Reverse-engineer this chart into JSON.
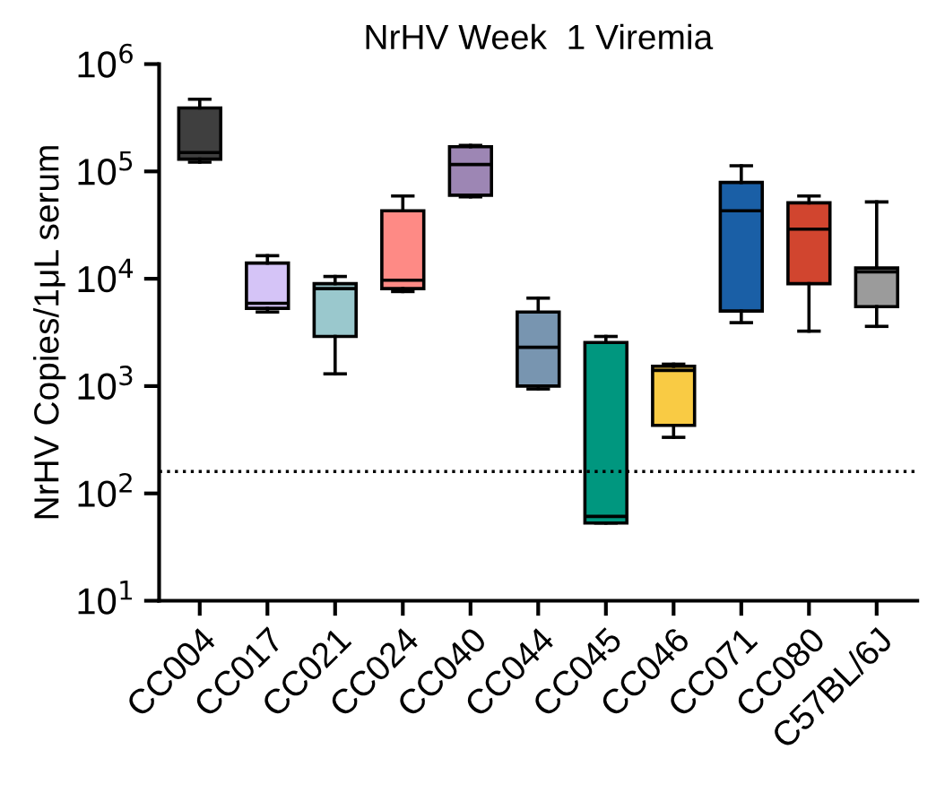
{
  "chart_data": {
    "type": "box",
    "title": "NrHV Week  1 Viremia",
    "ylabel": "NrHV Copies/1μL serum",
    "categories": [
      "CC004",
      "CC017",
      "CC021",
      "CC024",
      "CC040",
      "CC044",
      "CC045",
      "CC046",
      "CC071",
      "CC080",
      "C57BL/6J"
    ],
    "colors": [
      "#3f3f3f",
      "#d5c4f7",
      "#9ac8cd",
      "#fe8a85",
      "#9d86b4",
      "#7895b0",
      "#00977f",
      "#f9cb44",
      "#1a5fa6",
      "#d1452f",
      "#9b9b9b"
    ],
    "boxes": [
      {
        "low": 122000,
        "q1": 130000,
        "median": 150000,
        "q3": 390000,
        "high": 470000
      },
      {
        "low": 4900,
        "q1": 5300,
        "median": 5900,
        "q3": 14000,
        "high": 16400
      },
      {
        "low": 1300,
        "q1": 2900,
        "median": 8100,
        "q3": 9000,
        "high": 10500
      },
      {
        "low": 7600,
        "q1": 8100,
        "median": 9700,
        "q3": 43000,
        "high": 59000
      },
      {
        "low": 58000,
        "q1": 60000,
        "median": 116000,
        "q3": 170000,
        "high": 175000
      },
      {
        "low": 940,
        "q1": 1000,
        "median": 2300,
        "q3": 4900,
        "high": 6600
      },
      {
        "low": 53,
        "q1": 53,
        "median": 61,
        "q3": 2550,
        "high": 2900
      },
      {
        "low": 333,
        "q1": 430,
        "median": 1400,
        "q3": 1530,
        "high": 1600
      },
      {
        "low": 3900,
        "q1": 5000,
        "median": 43000,
        "q3": 79000,
        "high": 113000
      },
      {
        "low": 3250,
        "q1": 9000,
        "median": 29000,
        "q3": 51000,
        "high": 59000
      },
      {
        "low": 3600,
        "q1": 5500,
        "median": 11600,
        "q3": 12600,
        "high": 52000
      }
    ],
    "log": "y",
    "ylim": [
      10,
      1000000
    ],
    "yticks": [
      {
        "value": 10,
        "label": "10$^{1}$"
      },
      {
        "value": 100,
        "label": "10$^{2}$"
      },
      {
        "value": 1000,
        "label": "10$^{3}$"
      },
      {
        "value": 10000,
        "label": "10$^{4}$"
      },
      {
        "value": 100000,
        "label": "10$^{5}$"
      },
      {
        "value": 1000000,
        "label": "10$^{6}$"
      }
    ],
    "ref_lines": [
      {
        "axis": "y",
        "value": 160,
        "line_style": "dotted",
        "color": "#000000"
      }
    ],
    "grid": false,
    "legend": false
  }
}
